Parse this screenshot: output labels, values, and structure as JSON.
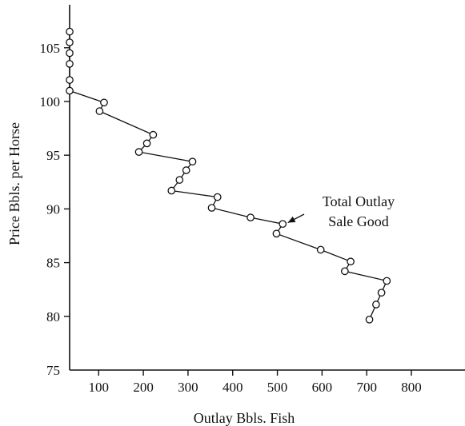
{
  "chart_data": {
    "type": "line",
    "title": "",
    "xlabel": "Outlay Bbls. Fish",
    "ylabel": "Price Bbls. per Horse",
    "xlim": [
      35,
      920
    ],
    "ylim": [
      75,
      109
    ],
    "x_ticks": [
      100,
      200,
      300,
      400,
      500,
      600,
      700,
      800
    ],
    "y_ticks": [
      75,
      80,
      85,
      90,
      95,
      100,
      105
    ],
    "grid": false,
    "legend": "none",
    "series": [
      {
        "points": [
          [
            35,
            106.5
          ],
          [
            35,
            105.5
          ],
          [
            35,
            104.5
          ],
          [
            35,
            103.5
          ],
          [
            35,
            102
          ],
          [
            35,
            101
          ],
          [
            112,
            99.9
          ],
          [
            102,
            99.1
          ],
          [
            222,
            96.9
          ],
          [
            208,
            96.1
          ],
          [
            190,
            95.3
          ],
          [
            310,
            94.4
          ],
          [
            296,
            93.6
          ],
          [
            281,
            92.7
          ],
          [
            263,
            91.7
          ],
          [
            366,
            91.1
          ],
          [
            353,
            90.1
          ],
          [
            440,
            89.2
          ],
          [
            512,
            88.6
          ],
          [
            498,
            87.7
          ],
          [
            597,
            86.2
          ],
          [
            664,
            85.1
          ],
          [
            651,
            84.2
          ],
          [
            745,
            83.3
          ],
          [
            733,
            82.2
          ],
          [
            721,
            81.1
          ],
          [
            706,
            79.7
          ]
        ]
      }
    ],
    "annotation": {
      "lines": [
        "Total Outlay",
        "Sale Good"
      ],
      "points_to": [
        518,
        88.5
      ]
    },
    "colors": {
      "line": "#111111",
      "marker_fill": "#ffffff"
    }
  }
}
